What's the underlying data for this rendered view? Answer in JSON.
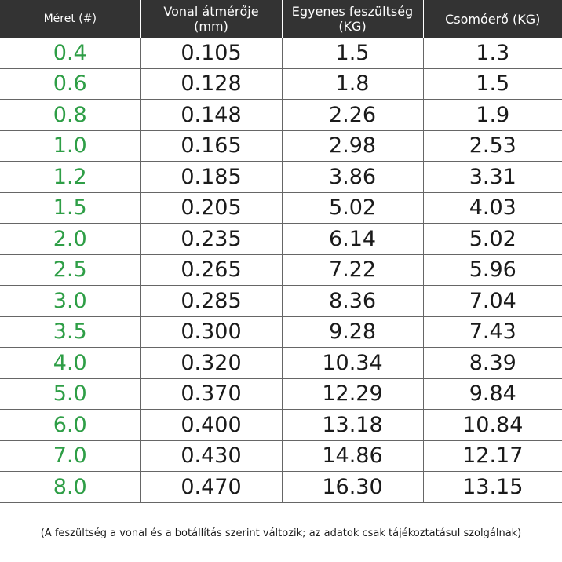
{
  "table": {
    "headers": [
      "Méret (#)",
      "Vonal átmérője (mm)",
      "Egyenes feszültség (KG)",
      "Csomóerő (KG)"
    ],
    "rows": [
      [
        "0.4",
        "0.105",
        "1.5",
        "1.3"
      ],
      [
        "0.6",
        "0.128",
        "1.8",
        "1.5"
      ],
      [
        "0.8",
        "0.148",
        "2.26",
        "1.9"
      ],
      [
        "1.0",
        "0.165",
        "2.98",
        "2.53"
      ],
      [
        "1.2",
        "0.185",
        "3.86",
        "3.31"
      ],
      [
        "1.5",
        "0.205",
        "5.02",
        "4.03"
      ],
      [
        "2.0",
        "0.235",
        "6.14",
        "5.02"
      ],
      [
        "2.5",
        "0.265",
        "7.22",
        "5.96"
      ],
      [
        "3.0",
        "0.285",
        "8.36",
        "7.04"
      ],
      [
        "3.5",
        "0.300",
        "9.28",
        "7.43"
      ],
      [
        "4.0",
        "0.320",
        "10.34",
        "8.39"
      ],
      [
        "5.0",
        "0.370",
        "12.29",
        "9.84"
      ],
      [
        "6.0",
        "0.400",
        "13.18",
        "10.84"
      ],
      [
        "7.0",
        "0.430",
        "14.86",
        "12.17"
      ],
      [
        "8.0",
        "0.470",
        "16.30",
        "13.15"
      ]
    ]
  },
  "footnote": "(A feszültség a vonal és a botállítás szerint változik; az adatok csak tájékoztatásul szolgálnak)",
  "colors": {
    "header_bg": "#333333",
    "header_text": "#ffffff",
    "size_column_text": "#2e9e46",
    "body_text": "#1a1a1a",
    "grid_line": "#666666"
  }
}
